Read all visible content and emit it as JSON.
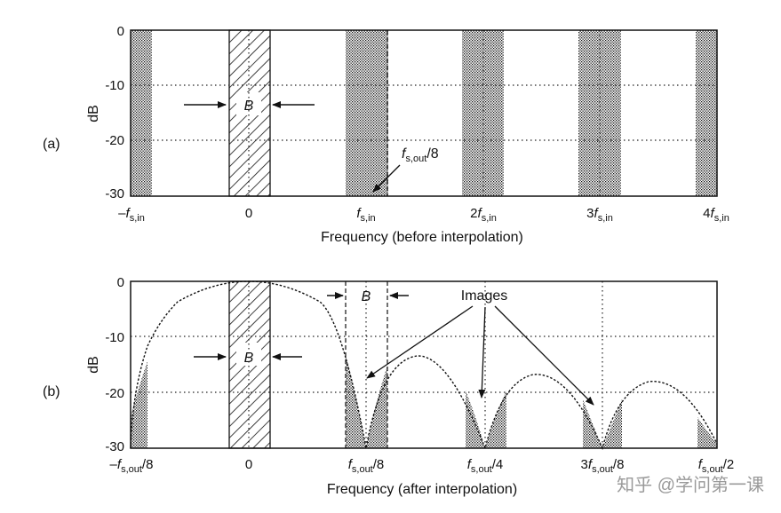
{
  "panel_a": {
    "label": "(a)",
    "ylabel": "dB",
    "xlabel": "Frequency (before interpolation)",
    "yticks": [
      "0",
      "-10",
      "-20",
      "-30"
    ],
    "xticks": [
      {
        "pre": "–",
        "var": "f",
        "sub": "s,in",
        "post": ""
      },
      {
        "pre": "0",
        "var": "",
        "sub": "",
        "post": ""
      },
      {
        "pre": "",
        "var": "f",
        "sub": "s,in",
        "post": ""
      },
      {
        "pre": "2",
        "var": "f",
        "sub": "s,in",
        "post": ""
      },
      {
        "pre": "3",
        "var": "f",
        "sub": "s,in",
        "post": ""
      },
      {
        "pre": "4",
        "var": "f",
        "sub": "s,in",
        "post": ""
      }
    ],
    "bandwidth_label": "B",
    "annotation": {
      "var": "f",
      "sub": "s,out",
      "post": "/8"
    }
  },
  "panel_b": {
    "label": "(b)",
    "ylabel": "dB",
    "xlabel": "Frequency (after interpolation)",
    "yticks": [
      "0",
      "-10",
      "-20",
      "-30"
    ],
    "xticks": [
      {
        "pre": "–",
        "var": "f",
        "sub": "s,out",
        "post": "/8"
      },
      {
        "pre": "0",
        "var": "",
        "sub": "",
        "post": ""
      },
      {
        "pre": "",
        "var": "f",
        "sub": "s,out",
        "post": "/8"
      },
      {
        "pre": "",
        "var": "f",
        "sub": "s,out",
        "post": "/4"
      },
      {
        "pre": "3",
        "var": "f",
        "sub": "s,out",
        "post": "/8"
      },
      {
        "pre": "",
        "var": "f",
        "sub": "s,out",
        "post": "/2"
      }
    ],
    "bandwidth_label": "B",
    "bandwidth_label_top": "B",
    "images_label": "Images"
  },
  "watermark": "知乎 @学问第一课"
}
